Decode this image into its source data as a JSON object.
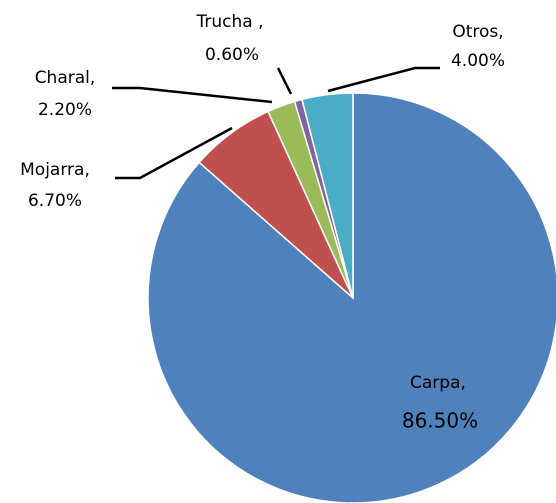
{
  "chart_data": {
    "type": "pie",
    "categories": [
      "Carpa,",
      "Mojarra,",
      "Charal,",
      "Trucha ,",
      "Otros,"
    ],
    "values": [
      86.5,
      6.7,
      2.2,
      0.6,
      4.0
    ],
    "value_labels": [
      "86.50%",
      "6.70%",
      "2.20%",
      "0.60%",
      "4.00%"
    ],
    "colors": [
      "#4f81bd",
      "#c0504d",
      "#9bbb59",
      "#8064a2",
      "#4bacc6"
    ]
  }
}
